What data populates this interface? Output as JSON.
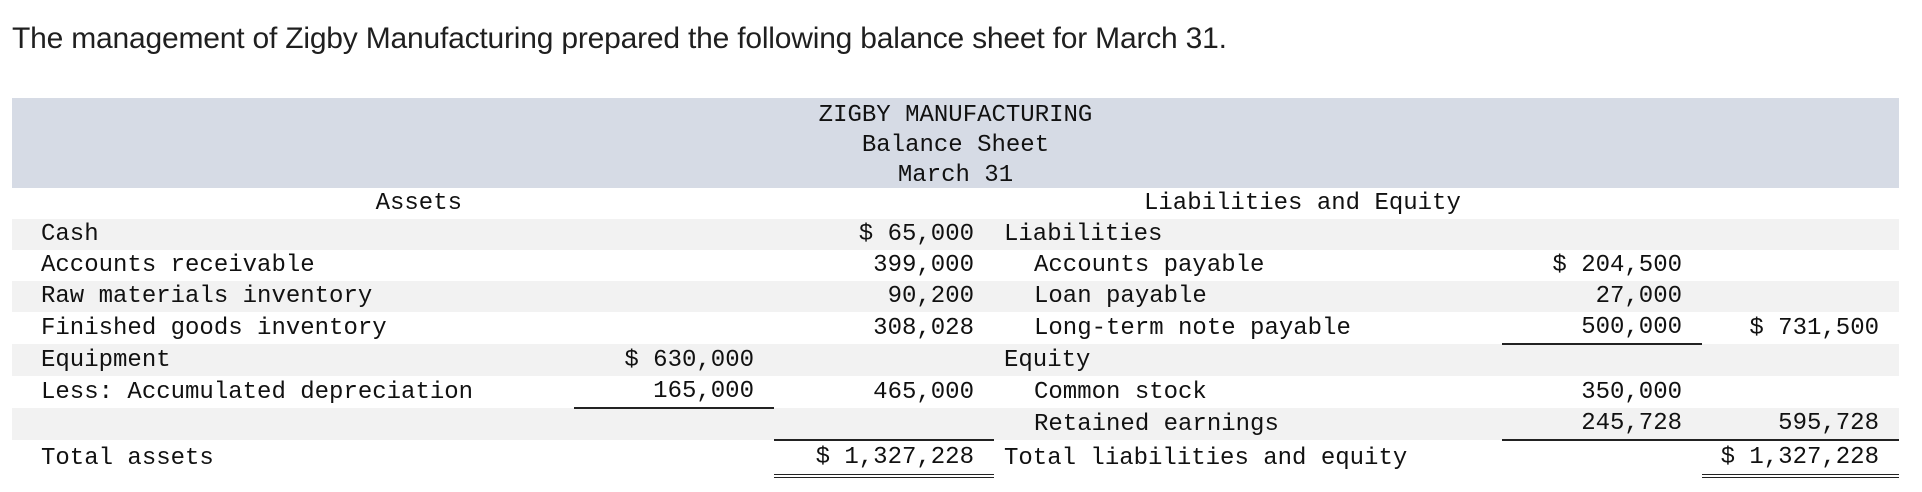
{
  "intro": "The management of Zigby Manufacturing prepared the following balance sheet for March 31.",
  "header": {
    "company": "ZIGBY MANUFACTURING",
    "title": "Balance Sheet",
    "date": "March 31"
  },
  "sections": {
    "assets": "Assets",
    "liabilities_equity": "Liabilities and Equity"
  },
  "assets": {
    "cash": {
      "label": "Cash",
      "amount": "$ 65,000"
    },
    "ar": {
      "label": "Accounts receivable",
      "amount": "399,000"
    },
    "raw": {
      "label": "Raw materials inventory",
      "amount": "90,200"
    },
    "finished": {
      "label": "Finished goods inventory",
      "amount": "308,028"
    },
    "equipment": {
      "label": "Equipment",
      "amount": "$ 630,000"
    },
    "accum": {
      "label": "Less: Accumulated depreciation",
      "amount": "165,000",
      "net": "465,000"
    },
    "total": {
      "label": "Total assets",
      "amount": "$ 1,327,228"
    }
  },
  "liabilities": {
    "heading": "Liabilities",
    "ap": {
      "label": "Accounts payable",
      "amount": "$ 204,500"
    },
    "loan": {
      "label": "Loan payable",
      "amount": "27,000"
    },
    "note": {
      "label": "Long-term note payable",
      "amount": "500,000",
      "total": "$ 731,500"
    }
  },
  "equity": {
    "heading": "Equity",
    "common": {
      "label": "Common stock",
      "amount": "350,000"
    },
    "retained": {
      "label": "Retained earnings",
      "amount": "245,728",
      "total": "595,728"
    },
    "total": {
      "label": "Total liabilities and equity",
      "amount": "$ 1,327,228"
    }
  }
}
